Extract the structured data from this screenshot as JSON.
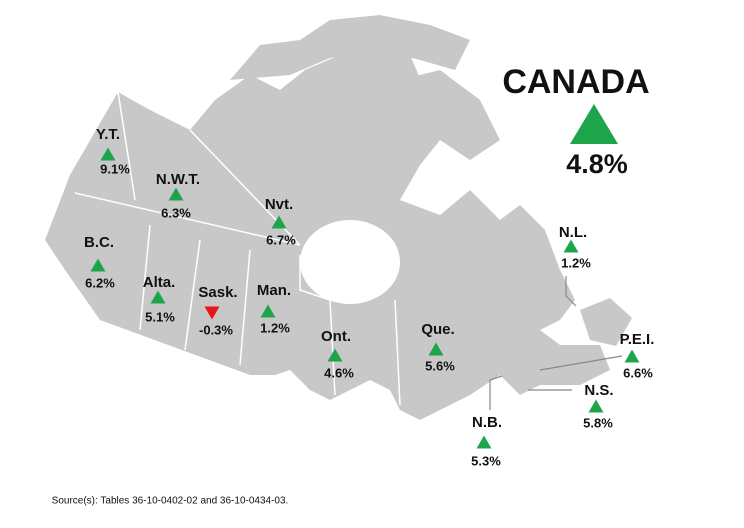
{
  "title": "CANADA",
  "national": {
    "change": "4.8%",
    "direction": "up"
  },
  "colors": {
    "up": "#1ea54c",
    "down": "#e8161b",
    "land": "#c8c8c8"
  },
  "regions": [
    {
      "name": "Y.T.",
      "change": "9.1%",
      "direction": "up"
    },
    {
      "name": "N.W.T.",
      "change": "6.3%",
      "direction": "up"
    },
    {
      "name": "Nvt.",
      "change": "6.7%",
      "direction": "up"
    },
    {
      "name": "B.C.",
      "change": "6.2%",
      "direction": "up"
    },
    {
      "name": "Alta.",
      "change": "5.1%",
      "direction": "up"
    },
    {
      "name": "Sask.",
      "change": "-0.3%",
      "direction": "down"
    },
    {
      "name": "Man.",
      "change": "1.2%",
      "direction": "up"
    },
    {
      "name": "Ont.",
      "change": "4.6%",
      "direction": "up"
    },
    {
      "name": "Que.",
      "change": "5.6%",
      "direction": "up"
    },
    {
      "name": "N.L.",
      "change": "1.2%",
      "direction": "up"
    },
    {
      "name": "P.E.I.",
      "change": "6.6%",
      "direction": "up"
    },
    {
      "name": "N.S.",
      "change": "5.8%",
      "direction": "up"
    },
    {
      "name": "N.B.",
      "change": "5.3%",
      "direction": "up"
    }
  ],
  "source": "Source(s): Tables 36-10-0402-02 and 36-10-0434-03."
}
